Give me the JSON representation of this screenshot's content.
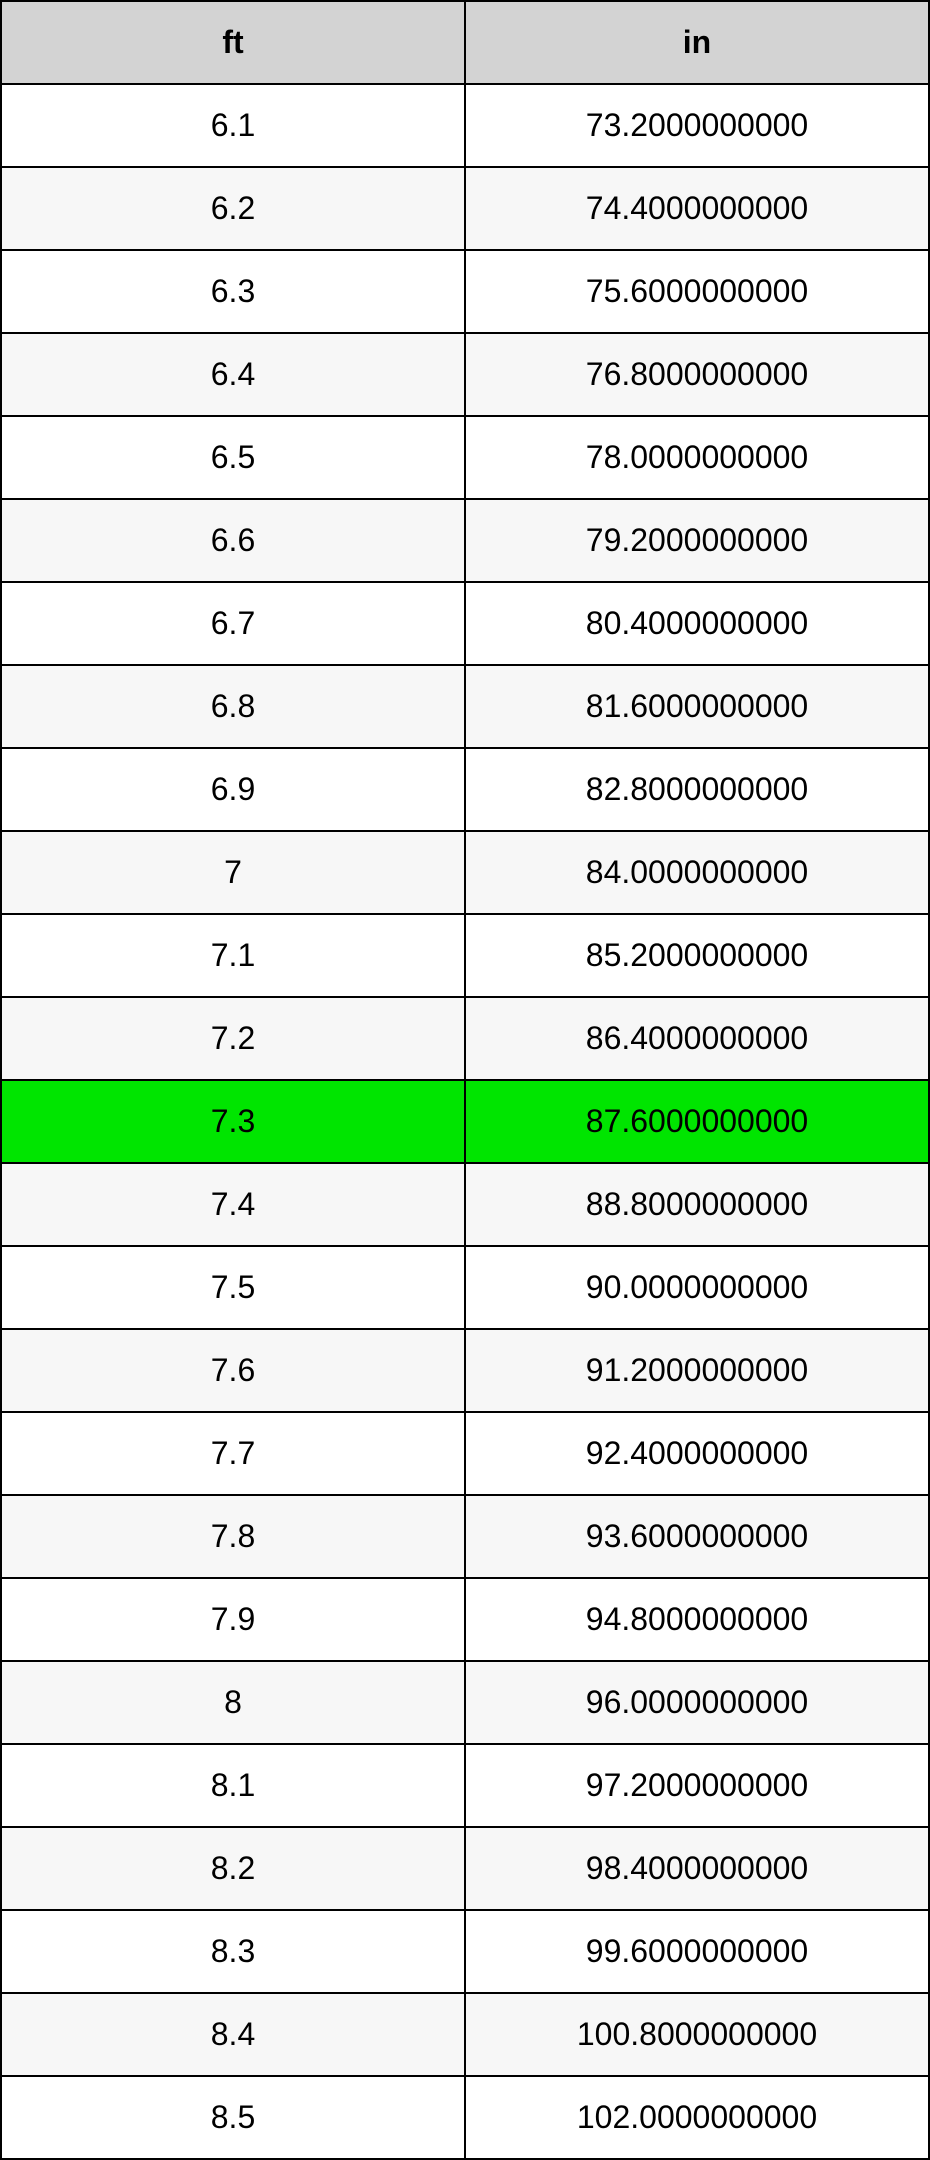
{
  "table": {
    "type": "table",
    "columns": [
      "ft",
      "in"
    ],
    "rows": [
      [
        "6.1",
        "73.2000000000"
      ],
      [
        "6.2",
        "74.4000000000"
      ],
      [
        "6.3",
        "75.6000000000"
      ],
      [
        "6.4",
        "76.8000000000"
      ],
      [
        "6.5",
        "78.0000000000"
      ],
      [
        "6.6",
        "79.2000000000"
      ],
      [
        "6.7",
        "80.4000000000"
      ],
      [
        "6.8",
        "81.6000000000"
      ],
      [
        "6.9",
        "82.8000000000"
      ],
      [
        "7",
        "84.0000000000"
      ],
      [
        "7.1",
        "85.2000000000"
      ],
      [
        "7.2",
        "86.4000000000"
      ],
      [
        "7.3",
        "87.6000000000"
      ],
      [
        "7.4",
        "88.8000000000"
      ],
      [
        "7.5",
        "90.0000000000"
      ],
      [
        "7.6",
        "91.2000000000"
      ],
      [
        "7.7",
        "92.4000000000"
      ],
      [
        "7.8",
        "93.6000000000"
      ],
      [
        "7.9",
        "94.8000000000"
      ],
      [
        "8",
        "96.0000000000"
      ],
      [
        "8.1",
        "97.2000000000"
      ],
      [
        "8.2",
        "98.4000000000"
      ],
      [
        "8.3",
        "99.6000000000"
      ],
      [
        "8.4",
        "100.8000000000"
      ],
      [
        "8.5",
        "102.0000000000"
      ]
    ],
    "highlighted_row_index": 12,
    "header_bg_color": "#d3d3d3",
    "row_odd_bg_color": "#ffffff",
    "row_even_bg_color": "#f7f7f7",
    "highlight_bg_color": "#00e500",
    "border_color": "#000000",
    "text_color": "#000000",
    "font_size": 32,
    "column_widths": [
      "50%",
      "50%"
    ],
    "column_alignment": [
      "center",
      "center"
    ]
  }
}
